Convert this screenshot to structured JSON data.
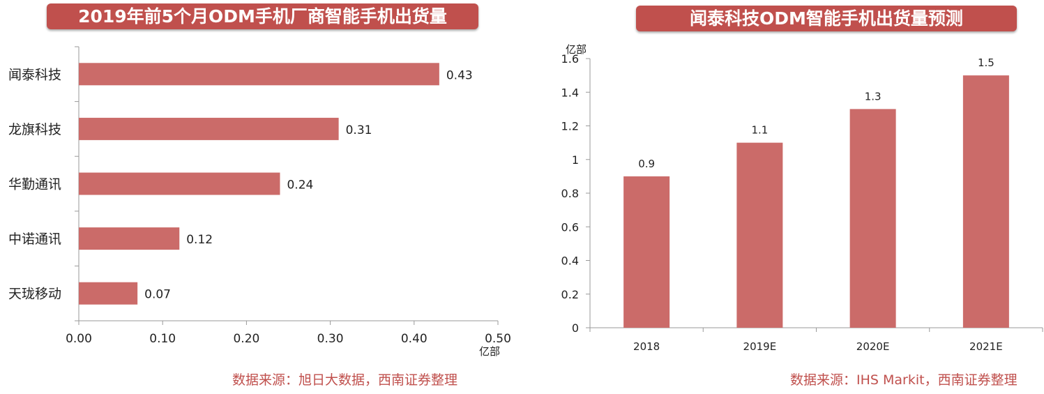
{
  "colors": {
    "bar": "#cb6b69",
    "title_bg": "#c0504d",
    "source": "#c0504d",
    "axis": "#999999"
  },
  "chart_data": [
    {
      "type": "bar",
      "orientation": "horizontal",
      "title": "2019年前5个月ODM手机厂商智能手机出货量",
      "categories": [
        "闻泰科技",
        "龙旗科技",
        "华勤通讯",
        "中诺通讯",
        "天珑移动"
      ],
      "values": [
        0.43,
        0.31,
        0.24,
        0.12,
        0.07
      ],
      "data_labels": [
        "0.43",
        "0.31",
        "0.24",
        "0.12",
        "0.07"
      ],
      "xlabel": "亿部",
      "xlim": [
        0,
        0.5
      ],
      "xticks": [
        "0.00",
        "0.10",
        "0.20",
        "0.30",
        "0.40",
        "0.50"
      ],
      "grid": false,
      "source": "数据来源：旭日大数据，西南证券整理"
    },
    {
      "type": "bar",
      "orientation": "vertical",
      "title": "闻泰科技ODM智能手机出货量预测",
      "categories": [
        "2018",
        "2019E",
        "2020E",
        "2021E"
      ],
      "values": [
        0.9,
        1.1,
        1.3,
        1.5
      ],
      "data_labels": [
        "0.9",
        "1.1",
        "1.3",
        "1.5"
      ],
      "ylabel": "亿部",
      "ylim": [
        0,
        1.6
      ],
      "yticks": [
        "0",
        "0.2",
        "0.4",
        "0.6",
        "0.8",
        "1",
        "1.2",
        "1.4",
        "1.6"
      ],
      "grid": false,
      "source": "数据来源：IHS Markit，西南证券整理"
    }
  ]
}
